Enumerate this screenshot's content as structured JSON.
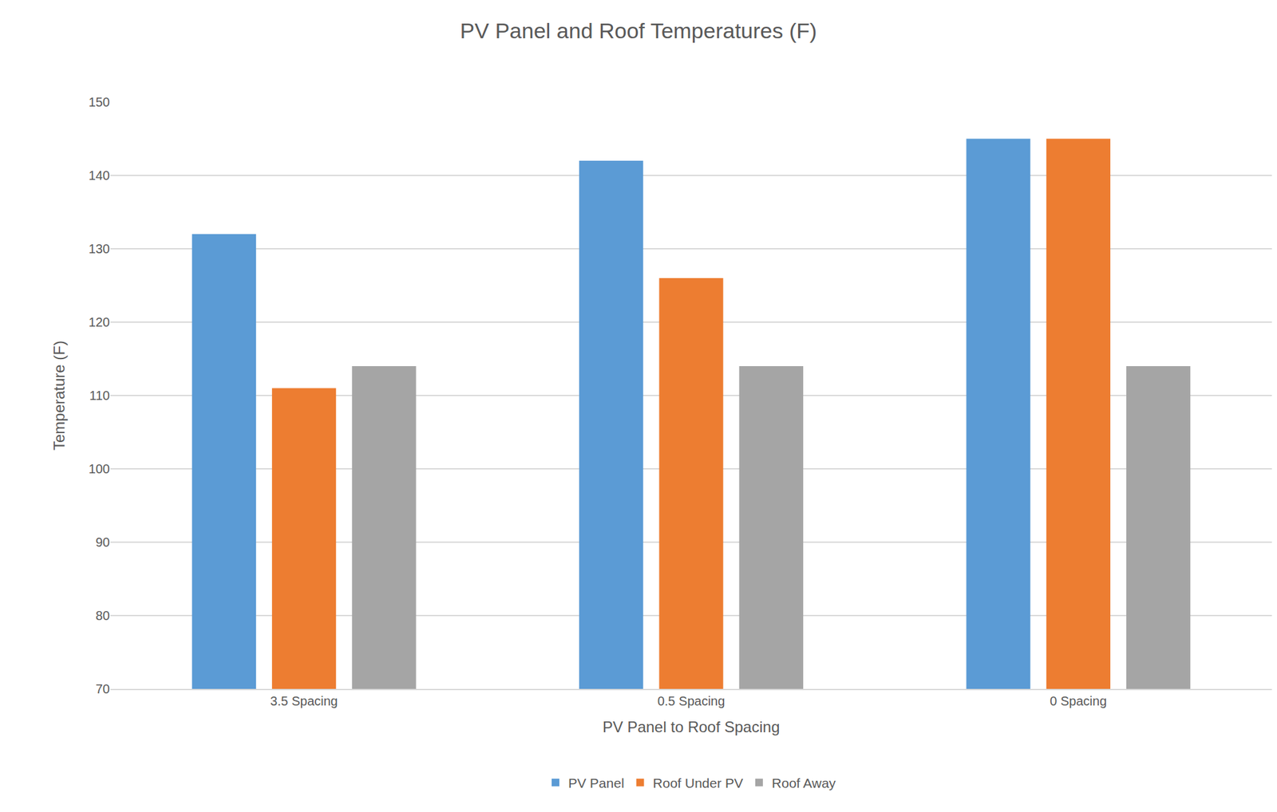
{
  "chart_data": {
    "type": "bar",
    "title": "PV Panel and Roof Temperatures (F)",
    "x_label": "PV Panel to Roof Spacing",
    "y_label": "Temperature (F)",
    "categories": [
      "3.5 Spacing",
      "0.5 Spacing",
      "0 Spacing"
    ],
    "series": [
      {
        "name": "PV Panel",
        "color": "#5b9bd5",
        "values": [
          132,
          142,
          145
        ]
      },
      {
        "name": "Roof Under PV",
        "color": "#ed7d31",
        "values": [
          111,
          126,
          145
        ]
      },
      {
        "name": "Roof Away",
        "color": "#a5a5a5",
        "values": [
          114,
          114,
          114
        ]
      }
    ],
    "ylim": [
      70,
      150
    ],
    "yticks": [
      70,
      80,
      90,
      100,
      110,
      120,
      130,
      140,
      150
    ],
    "grid": true,
    "legend": "bottom"
  }
}
